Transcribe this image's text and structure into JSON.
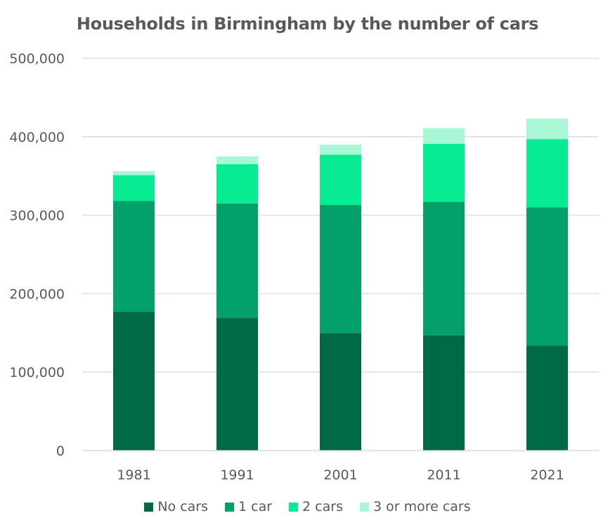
{
  "chart_data": {
    "type": "bar",
    "stacked": true,
    "title": "Households in Birmingham by the number of cars",
    "xlabel": "",
    "ylabel": "",
    "categories": [
      "1981",
      "1991",
      "2001",
      "2011",
      "2021"
    ],
    "ylim": [
      0,
      500000
    ],
    "yticks": [
      0,
      100000,
      200000,
      300000,
      400000,
      500000
    ],
    "ytick_labels": [
      "0",
      "100,000",
      "200,000",
      "300,000",
      "400,000",
      "500,000"
    ],
    "grid": true,
    "legend_position": "bottom",
    "series": [
      {
        "name": "No cars",
        "color": "#006a44",
        "values": [
          177000,
          169000,
          150000,
          147000,
          134000
        ]
      },
      {
        "name": "1 car",
        "color": "#04a06a",
        "values": [
          141000,
          146000,
          163000,
          170000,
          176000
        ]
      },
      {
        "name": "2 cars",
        "color": "#07eb92",
        "values": [
          33000,
          50000,
          64000,
          74000,
          87000
        ]
      },
      {
        "name": "3 or more cars",
        "color": "#a8f8d8",
        "values": [
          5000,
          10000,
          13000,
          20000,
          26000
        ]
      }
    ]
  }
}
